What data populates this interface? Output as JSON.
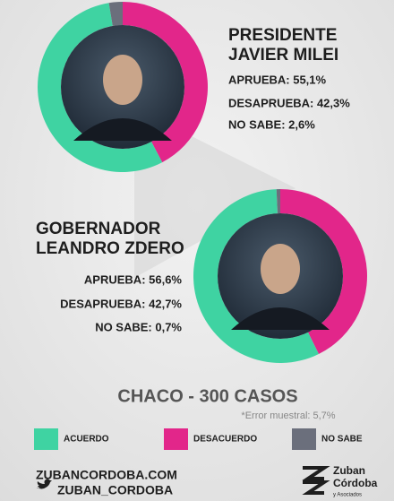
{
  "chart_data": [
    {
      "type": "donut",
      "title": [
        "PRESIDENTE",
        "JAVIER MILEI"
      ],
      "values": [
        55.1,
        42.3,
        2.6
      ],
      "value_labels": [
        "APRUEBA: 55,1%",
        "DESAPRUEBA: 42,3%",
        "NO SABE: 2,6%"
      ],
      "colors": [
        "#3fd3a2",
        "#e2268a",
        "#6b6f7c"
      ]
    },
    {
      "type": "donut",
      "title": [
        "GOBERNADOR",
        "LEANDRO ZDERO"
      ],
      "values": [
        56.6,
        42.7,
        0.7
      ],
      "value_labels": [
        "APRUEBA: 56,6%",
        "DESAPRUEBA: 42,7%",
        "NO SABE: 0,7%"
      ],
      "colors": [
        "#3fd3a2",
        "#e2268a",
        "#6b6f7c"
      ]
    }
  ],
  "legend": {
    "labels": [
      "ACUERDO",
      "DESACUERDO",
      "NO SABE"
    ],
    "colors": [
      "#3fd3a2",
      "#e2268a",
      "#6b6f7c"
    ]
  },
  "subtitle": "CHACO - 300 CASOS",
  "note": "*Error muestral: 5,7%",
  "footer": {
    "website": "ZUBANCORDOBA.COM",
    "twitter": "ZUBAN_CORDOBA",
    "logo": [
      "Zuban",
      "Córdoba",
      "y Asociados"
    ]
  }
}
